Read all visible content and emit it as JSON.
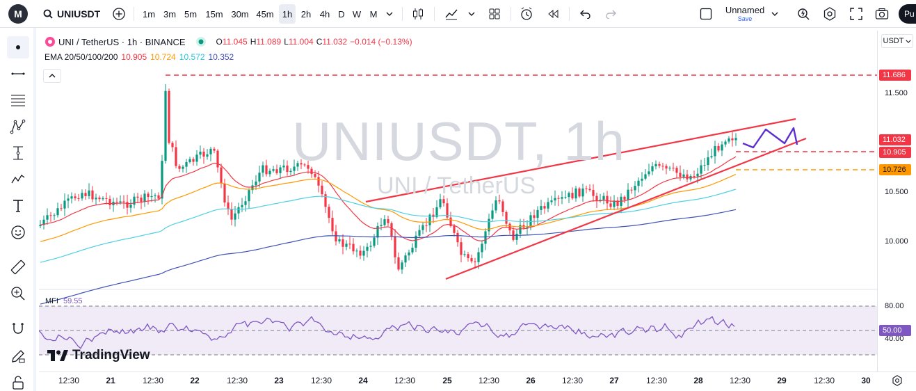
{
  "toolbar": {
    "logo": "M",
    "symbol": "UNIUSDT",
    "intervals": [
      "1m",
      "3m",
      "5m",
      "15m",
      "30m",
      "45m",
      "1h",
      "2h",
      "4h",
      "D",
      "W",
      "M"
    ],
    "active_interval": "1h",
    "layout_name": "Unnamed",
    "save_label": "Save",
    "user_button": "Pu"
  },
  "legend": {
    "title": "UNI / TetherUS · 1h · BINANCE",
    "open_label": "O",
    "open": "11.045",
    "high_label": "H",
    "high": "11.089",
    "low_label": "L",
    "low": "11.004",
    "close_label": "C",
    "close": "11.032",
    "change": "−0.014 (−0.13%)",
    "ema_label": "EMA 20/50/100/200",
    "ema20": "10.905",
    "ema50": "10.724",
    "ema100": "10.572",
    "ema200": "10.352"
  },
  "watermark": {
    "main": "UNIUSDT, 1h",
    "sub": "UNI / TetherUS"
  },
  "price_scale": {
    "unit": "USDT",
    "labels": [
      "11.500",
      "10.500",
      "10.000"
    ],
    "tag_high": "11.686",
    "tag_last": "11.032",
    "tag_ema": "10.905",
    "tag_orange": "10.726"
  },
  "mfi": {
    "label": "MFI",
    "value": "59.55",
    "levels": [
      "80.00",
      "40.00"
    ],
    "tag": "50.00"
  },
  "branding": "TradingView",
  "time_scale": [
    "12:30",
    "21",
    "12:30",
    "22",
    "12:30",
    "23",
    "12:30",
    "24",
    "12:30",
    "25",
    "12:30",
    "26",
    "12:30",
    "27",
    "12:30",
    "28",
    "12:30",
    "29",
    "12:30",
    "30"
  ],
  "colors": {
    "up": "#089981",
    "down": "#f23645",
    "ema20": "#f23645",
    "ema50": "#ff9800",
    "ema100": "#4dd0e1",
    "ema200": "#3f51b5",
    "mfi": "#7e57c2",
    "line": "#f23645",
    "projection": "#5b2fcf"
  }
}
